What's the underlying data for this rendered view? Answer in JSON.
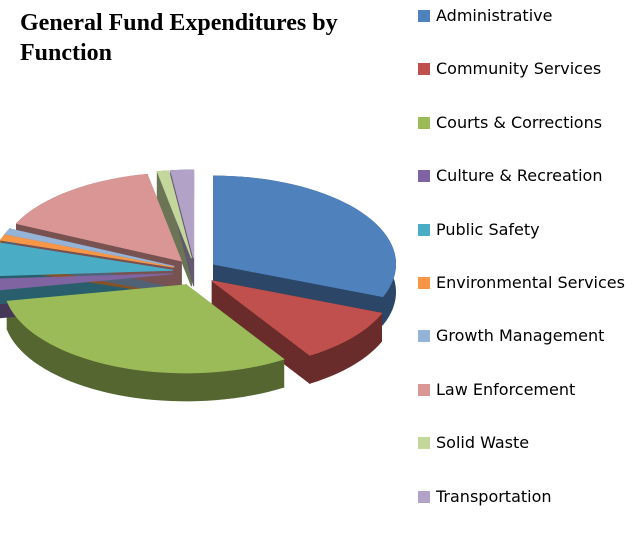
{
  "chart_data": {
    "type": "pie",
    "title": "General Fund Expenditures by Function",
    "categories": [
      "Administrative",
      "Community Services",
      "Courts & Corrections",
      "Culture & Recreation",
      "Public Safety",
      "Environmental Services",
      "Growth Management",
      "Law Enforcement",
      "Solid Waste",
      "Transportation"
    ],
    "values": [
      31,
      10,
      31,
      2,
      6,
      1,
      1,
      15,
      1,
      2
    ],
    "colors": [
      "#4f81bd",
      "#c0504d",
      "#9bbb59",
      "#8064a2",
      "#4bacc6",
      "#f79646",
      "#95b3d7",
      "#d99694",
      "#c3d69b",
      "#b3a2c7"
    ],
    "legend": "right"
  }
}
